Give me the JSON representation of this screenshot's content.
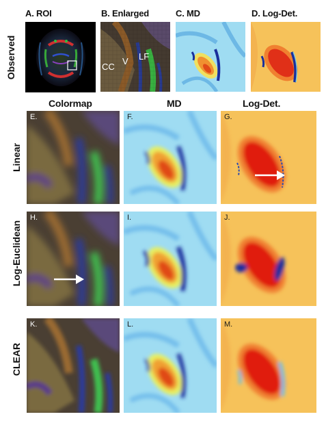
{
  "top_titles": {
    "a": "A. ROI",
    "b": "B. Enlarged",
    "c": "C. MD",
    "d": "D. Log-Det."
  },
  "column_titles": {
    "colormap": "Colormap",
    "md": "MD",
    "logdet": "Log-Det."
  },
  "row_labels": {
    "observed": "Observed",
    "linear": "Linear",
    "log_euclidean": "Log-Euclidean",
    "clear": "CLEAR"
  },
  "panel_labels": {
    "e": "E.",
    "f": "F.",
    "g": "G.",
    "h": "H.",
    "i": "I.",
    "j": "J.",
    "k": "K.",
    "l": "L.",
    "m": "M."
  },
  "enlarged_annotations": {
    "cc": "CC",
    "v": "V",
    "lf": "LF"
  },
  "colors": {
    "md_background": "#9fdcf2",
    "md_hot": "#e04a18",
    "md_vessel": "#1a2f9c",
    "logdet_background": "#f6c25a",
    "logdet_hot": "#e01a10",
    "colormap_background": "#4a3f33"
  }
}
